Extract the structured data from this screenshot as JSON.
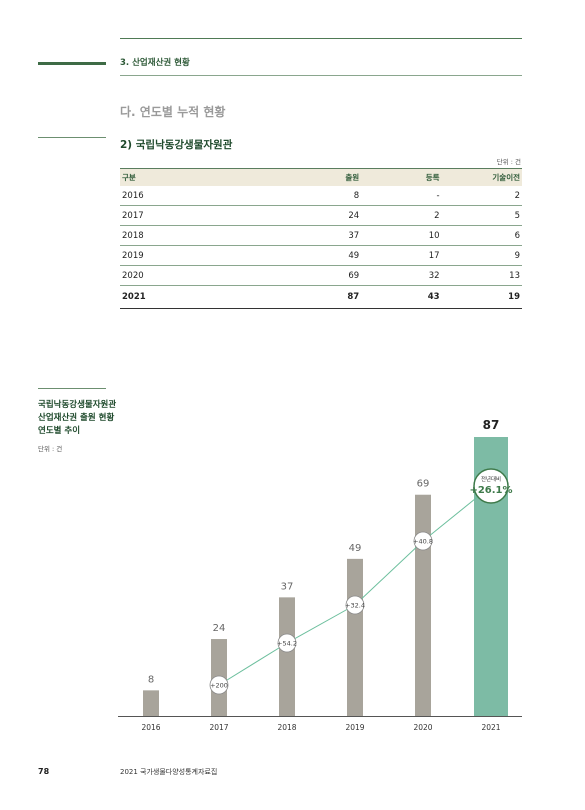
{
  "header": {
    "section_title": "3. 산업재산권 현황",
    "subsection_title": "다. 연도별 누적 현황",
    "table_title": "2) 국립낙동강생물자원관",
    "unit": "단위 : 건"
  },
  "table": {
    "headers": [
      "구분",
      "출원",
      "등록",
      "기술이전"
    ],
    "rows": [
      [
        "2016",
        "8",
        "-",
        "2"
      ],
      [
        "2017",
        "24",
        "2",
        "5"
      ],
      [
        "2018",
        "37",
        "10",
        "6"
      ],
      [
        "2019",
        "49",
        "17",
        "9"
      ],
      [
        "2020",
        "69",
        "32",
        "13"
      ]
    ],
    "total_row": [
      "2021",
      "87",
      "43",
      "19"
    ]
  },
  "chart_side": {
    "title_lines": [
      "국립낙동강생물자원관",
      "산업재산권 출원 현황",
      "연도별 추이"
    ],
    "unit": "단위 : 건"
  },
  "colors": {
    "bar": "#a8a49b",
    "highlight_bar": "#7dbba5",
    "line": "#6cbf9d",
    "accent_green": "#3e7a4a"
  },
  "chart_data": {
    "type": "bar",
    "categories": [
      "2016",
      "2017",
      "2018",
      "2019",
      "2020",
      "2021"
    ],
    "values": [
      8,
      24,
      37,
      49,
      69,
      87
    ],
    "growth_labels": [
      "",
      "+200",
      "+54.2",
      "+32.4",
      "+40.8",
      "+26.1%"
    ],
    "growth_values": [
      null,
      200,
      54.2,
      32.4,
      40.8,
      26.1
    ],
    "highlight_caption": "전년대비",
    "highlight_index": 5,
    "ylim": [
      0,
      87
    ]
  },
  "footer": {
    "page_number": "78",
    "book_title": "2021 국가생물다양성통계자료집"
  }
}
